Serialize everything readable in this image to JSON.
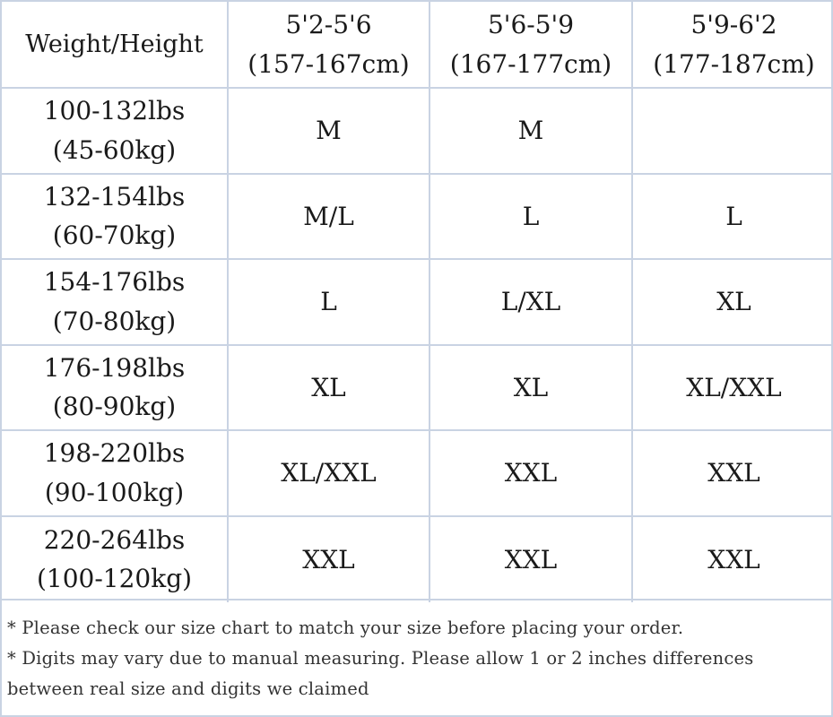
{
  "table": {
    "corner_label": "Weight/Height",
    "columns": [
      {
        "line1": "5'2-5'6",
        "line2": "(157-167cm)"
      },
      {
        "line1": "5'6-5'9",
        "line2": "(167-177cm)"
      },
      {
        "line1": "5'9-6'2",
        "line2": "(177-187cm)"
      }
    ],
    "rows": [
      {
        "line1": "100-132lbs",
        "line2": "(45-60kg)",
        "cells": [
          "M",
          "M",
          ""
        ]
      },
      {
        "line1": "132-154lbs",
        "line2": "(60-70kg)",
        "cells": [
          "M/L",
          "L",
          "L"
        ]
      },
      {
        "line1": "154-176lbs",
        "line2": "(70-80kg)",
        "cells": [
          "L",
          "L/XL",
          "XL"
        ]
      },
      {
        "line1": "176-198lbs",
        "line2": "(80-90kg)",
        "cells": [
          "XL",
          "XL",
          "XL/XXL"
        ]
      },
      {
        "line1": "198-220lbs",
        "line2": "(90-100kg)",
        "cells": [
          "XL/XXL",
          "XXL",
          "XXL"
        ]
      },
      {
        "line1": "220-264lbs",
        "line2": "(100-120kg)",
        "cells": [
          "XXL",
          "XXL",
          "XXL"
        ]
      }
    ]
  },
  "notes": [
    "* Please check our size chart to match your size before placing your order.",
    "* Digits may vary due to manual measuring. Please allow 1 or 2 inches differences between real size and digits we claimed"
  ]
}
